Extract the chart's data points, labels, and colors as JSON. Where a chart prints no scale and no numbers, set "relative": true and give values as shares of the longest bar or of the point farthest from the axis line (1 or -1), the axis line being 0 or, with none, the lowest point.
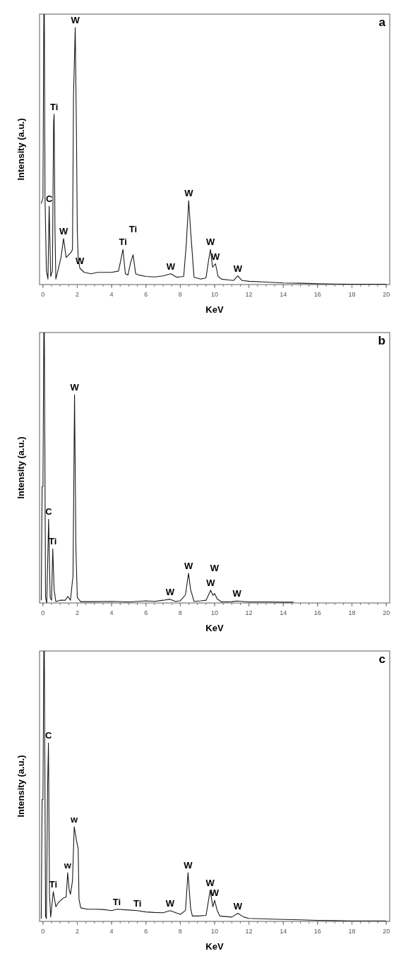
{
  "chart_data": [
    {
      "type": "line",
      "title": "a",
      "xlabel": "KeV",
      "ylabel": "Intensity (a.u.)",
      "relative": true,
      "xlim": [
        -0.2,
        20.2
      ],
      "xticks": [
        0,
        2,
        4,
        6,
        8,
        10,
        12,
        14,
        16,
        18,
        20
      ],
      "x": [
        -0.1,
        0,
        0.05,
        0.08,
        0.12,
        0.2,
        0.29,
        0.36,
        0.45,
        0.55,
        0.62,
        0.65,
        0.7,
        0.75,
        0.9,
        1.05,
        1.2,
        1.35,
        1.5,
        1.65,
        1.72,
        1.78,
        1.88,
        1.95,
        2.0,
        2.05,
        2.15,
        2.4,
        2.8,
        3.2,
        3.6,
        4.0,
        4.4,
        4.5,
        4.66,
        4.8,
        4.95,
        5.1,
        5.25,
        5.4,
        5.6,
        6,
        6.5,
        7,
        7.45,
        7.8,
        8.2,
        8.35,
        8.49,
        8.6,
        8.8,
        9.2,
        9.5,
        9.65,
        9.76,
        9.88,
        10.05,
        10.2,
        10.4,
        10.8,
        11.1,
        11.35,
        11.6,
        12,
        13,
        14,
        15,
        16,
        17,
        18,
        19,
        20
      ],
      "series": [
        {
          "color": "#1a1a1a",
          "values": [
            0.3,
            0.32,
            1.0,
            1.0,
            0.32,
            0.05,
            0.02,
            0.29,
            0.03,
            0.05,
            0.6,
            0.63,
            0.2,
            0.02,
            0.06,
            0.1,
            0.17,
            0.1,
            0.11,
            0.12,
            0.13,
            0.7,
            0.95,
            0.56,
            0.2,
            0.1,
            0.06,
            0.045,
            0.04,
            0.045,
            0.045,
            0.045,
            0.05,
            0.08,
            0.13,
            0.04,
            0.035,
            0.08,
            0.11,
            0.04,
            0.035,
            0.03,
            0.028,
            0.032,
            0.04,
            0.027,
            0.03,
            0.15,
            0.31,
            0.2,
            0.027,
            0.02,
            0.025,
            0.09,
            0.13,
            0.064,
            0.077,
            0.03,
            0.02,
            0.017,
            0.015,
            0.032,
            0.015,
            0.012,
            0.009,
            0.006,
            0.005,
            0.003,
            0.002,
            0.001,
            0.001,
            0.001
          ]
        }
      ],
      "annotations": [
        {
          "text": "W",
          "x": 1.88,
          "y": 0.95
        },
        {
          "text": "Ti",
          "x": 0.65,
          "y": 0.63
        },
        {
          "text": "C",
          "x": 0.36,
          "y": 0.29
        },
        {
          "text": "W",
          "x": 1.2,
          "y": 0.17
        },
        {
          "text": "W",
          "x": 2.15,
          "y": 0.06
        },
        {
          "text": "Ti",
          "x": 4.66,
          "y": 0.13
        },
        {
          "text": "Ti",
          "x": 5.25,
          "y": 0.11
        },
        {
          "text": "W",
          "x": 7.45,
          "y": 0.04
        },
        {
          "text": "W",
          "x": 8.49,
          "y": 0.31
        },
        {
          "text": "W",
          "x": 9.76,
          "y": 0.13
        },
        {
          "text": "W",
          "x": 10.05,
          "y": 0.077
        },
        {
          "text": "W",
          "x": 11.35,
          "y": 0.032
        }
      ]
    },
    {
      "type": "line",
      "title": "b",
      "xlabel": "KeV",
      "ylabel": "Intensity (a.u.)",
      "relative": true,
      "xlim": [
        -0.2,
        20.2
      ],
      "xticks": [
        0,
        2,
        4,
        6,
        8,
        10,
        12,
        14,
        16,
        18,
        20
      ],
      "x": [
        -0.1,
        -0.05,
        0,
        0.05,
        0.08,
        0.15,
        0.22,
        0.33,
        0.42,
        0.5,
        0.57,
        0.65,
        0.75,
        1.0,
        1.3,
        1.45,
        1.6,
        1.75,
        1.84,
        1.92,
        2.0,
        2.2,
        3,
        4,
        5,
        6,
        6.5,
        7,
        7.4,
        7.7,
        8,
        8.3,
        8.48,
        8.6,
        8.8,
        9.2,
        9.5,
        9.77,
        9.9,
        10.0,
        10.15,
        10.4,
        11,
        11.3,
        12,
        13,
        14,
        14.6
      ],
      "series": [
        {
          "color": "#1a1a1a",
          "values": [
            0.01,
            0.43,
            0.43,
            1.0,
            1.0,
            0.02,
            0.0,
            0.31,
            0.02,
            0.01,
            0.2,
            0.05,
            0.005,
            0.01,
            0.01,
            0.024,
            0.01,
            0.1,
            0.77,
            0.2,
            0.02,
            0.005,
            0.005,
            0.006,
            0.004,
            0.008,
            0.006,
            0.01,
            0.014,
            0.006,
            0.008,
            0.03,
            0.11,
            0.05,
            0.006,
            0.008,
            0.01,
            0.047,
            0.028,
            0.035,
            0.015,
            0.004,
            0.005,
            0.007,
            0.004,
            0.004,
            0.003,
            0.003
          ]
        }
      ],
      "annotations": [
        {
          "text": "W",
          "x": 1.84,
          "y": 0.77
        },
        {
          "text": "C",
          "x": 0.33,
          "y": 0.31
        },
        {
          "text": "Ti",
          "x": 0.57,
          "y": 0.2
        },
        {
          "text": "W",
          "x": 7.4,
          "y": 0.014
        },
        {
          "text": "W",
          "x": 8.48,
          "y": 0.11
        },
        {
          "text": "W",
          "x": 9.77,
          "y": 0.047
        },
        {
          "text": "W",
          "x": 10.0,
          "y": 0.035
        },
        {
          "text": "W",
          "x": 11.3,
          "y": 0.007
        }
      ]
    },
    {
      "type": "line",
      "title": "c",
      "xlabel": "KeV",
      "ylabel": "Intensity (a.u.)",
      "relative": true,
      "xlim": [
        -0.2,
        20.2
      ],
      "xticks": [
        0,
        2,
        4,
        6,
        8,
        10,
        12,
        14,
        16,
        18,
        20
      ],
      "x": [
        -0.1,
        -0.05,
        0,
        0.05,
        0.08,
        0.15,
        0.2,
        0.27,
        0.32,
        0.38,
        0.45,
        0.6,
        0.75,
        0.9,
        1.2,
        1.35,
        1.44,
        1.52,
        1.6,
        1.72,
        1.82,
        1.95,
        2.05,
        2.1,
        2.2,
        2.6,
        3,
        3.5,
        4,
        4.3,
        5,
        5.5,
        6,
        6.5,
        7,
        7.4,
        8,
        8.3,
        8.45,
        8.6,
        8.7,
        9,
        9.5,
        9.74,
        9.9,
        10.0,
        10.15,
        10.3,
        11,
        11.35,
        11.7,
        12,
        13,
        14,
        15,
        16,
        17,
        18,
        19,
        20
      ],
      "series": [
        {
          "color": "#1a1a1a",
          "values": [
            0.01,
            0.45,
            0.45,
            1.0,
            1.0,
            0.02,
            0.01,
            0.5,
            0.66,
            0.1,
            0.016,
            0.11,
            0.054,
            0.07,
            0.087,
            0.09,
            0.18,
            0.12,
            0.1,
            0.15,
            0.35,
            0.3,
            0.27,
            0.082,
            0.05,
            0.045,
            0.045,
            0.044,
            0.04,
            0.045,
            0.042,
            0.04,
            0.035,
            0.033,
            0.032,
            0.04,
            0.026,
            0.04,
            0.18,
            0.05,
            0.02,
            0.02,
            0.022,
            0.115,
            0.054,
            0.078,
            0.04,
            0.02,
            0.016,
            0.03,
            0.016,
            0.011,
            0.009,
            0.007,
            0.006,
            0.004,
            0.003,
            0.002,
            0.002,
            0.002
          ]
        }
      ],
      "annotations": [
        {
          "text": "C",
          "x": 0.32,
          "y": 0.66
        },
        {
          "text": "w",
          "x": 1.82,
          "y": 0.35
        },
        {
          "text": "w",
          "x": 1.44,
          "y": 0.18
        },
        {
          "text": "Ti",
          "x": 0.6,
          "y": 0.11
        },
        {
          "text": "W",
          "x": 8.45,
          "y": 0.18
        },
        {
          "text": "Ti",
          "x": 5.5,
          "y": 0.04
        },
        {
          "text": "Ti",
          "x": 4.3,
          "y": 0.045
        },
        {
          "text": "W",
          "x": 7.4,
          "y": 0.04
        },
        {
          "text": "W",
          "x": 9.74,
          "y": 0.115
        },
        {
          "text": "W",
          "x": 10.0,
          "y": 0.078
        },
        {
          "text": "W",
          "x": 11.35,
          "y": 0.03
        }
      ]
    }
  ]
}
